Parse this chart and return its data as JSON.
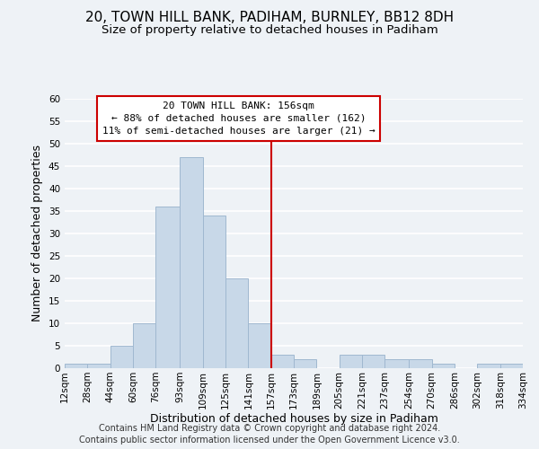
{
  "title": "20, TOWN HILL BANK, PADIHAM, BURNLEY, BB12 8DH",
  "subtitle": "Size of property relative to detached houses in Padiham",
  "xlabel": "Distribution of detached houses by size in Padiham",
  "ylabel": "Number of detached properties",
  "bin_edges": [
    12,
    28,
    44,
    60,
    76,
    93,
    109,
    125,
    141,
    157,
    173,
    189,
    205,
    221,
    237,
    254,
    270,
    286,
    302,
    318,
    334
  ],
  "bin_heights": [
    1,
    1,
    5,
    10,
    36,
    47,
    34,
    20,
    10,
    3,
    2,
    0,
    3,
    3,
    2,
    2,
    1,
    0,
    1,
    1
  ],
  "bar_color": "#c8d8e8",
  "bar_edge_color": "#a0b8d0",
  "vline_x": 157,
  "vline_color": "#cc0000",
  "annotation_line1": "20 TOWN HILL BANK: 156sqm",
  "annotation_line2": "← 88% of detached houses are smaller (162)",
  "annotation_line3": "11% of semi-detached houses are larger (21) →",
  "annotation_box_color": "#ffffff",
  "annotation_box_edge": "#cc0000",
  "ylim": [
    0,
    60
  ],
  "yticks": [
    0,
    5,
    10,
    15,
    20,
    25,
    30,
    35,
    40,
    45,
    50,
    55,
    60
  ],
  "xtick_labels": [
    "12sqm",
    "28sqm",
    "44sqm",
    "60sqm",
    "76sqm",
    "93sqm",
    "109sqm",
    "125sqm",
    "141sqm",
    "157sqm",
    "173sqm",
    "189sqm",
    "205sqm",
    "221sqm",
    "237sqm",
    "254sqm",
    "270sqm",
    "286sqm",
    "302sqm",
    "318sqm",
    "334sqm"
  ],
  "footer_line1": "Contains HM Land Registry data © Crown copyright and database right 2024.",
  "footer_line2": "Contains public sector information licensed under the Open Government Licence v3.0.",
  "background_color": "#eef2f6",
  "grid_color": "#ffffff",
  "title_fontsize": 11,
  "subtitle_fontsize": 9.5,
  "axis_label_fontsize": 9,
  "tick_fontsize": 7.5,
  "annotation_fontsize": 8,
  "footer_fontsize": 7
}
